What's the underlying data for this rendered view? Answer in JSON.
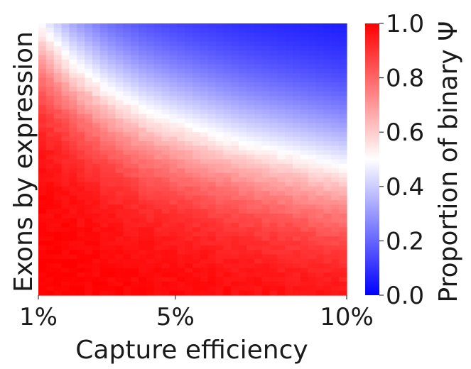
{
  "chart_data": {
    "type": "heatmap",
    "title": "",
    "xlabel": "Capture efficiency",
    "ylabel": "Exons by expression",
    "x_ticks": [
      "1%",
      "5%",
      "10%"
    ],
    "x_tick_values": [
      0.01,
      0.05,
      0.1
    ],
    "x_range": [
      0.01,
      0.1
    ],
    "colorbar": {
      "label": "Proportion of binary Ψ",
      "ticks": [
        "0.0",
        "0.2",
        "0.4",
        "0.6",
        "0.8",
        "1.0"
      ],
      "range": [
        0.0,
        1.0
      ],
      "colormap": "bwr",
      "colors": {
        "low": "#0000ff",
        "mid": "#ffffff",
        "high": "#ff0000"
      }
    },
    "boundary_0_5": {
      "description_x": "capture efficiency",
      "x": [
        0.01,
        0.02,
        0.03,
        0.04,
        0.05,
        0.06,
        0.07,
        0.08,
        0.09,
        0.1
      ],
      "row_fraction_from_top": [
        0.0,
        0.14,
        0.24,
        0.31,
        0.36,
        0.4,
        0.44,
        0.47,
        0.5,
        0.53
      ]
    },
    "grid": false
  }
}
